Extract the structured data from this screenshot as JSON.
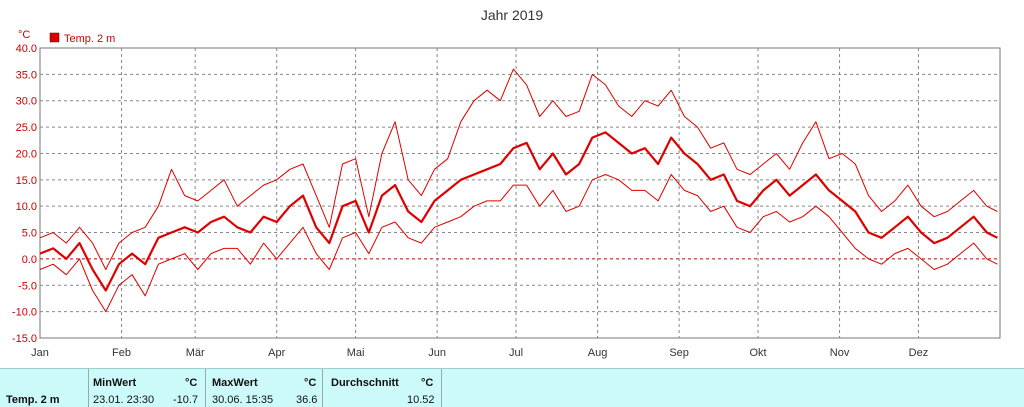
{
  "chart_data": {
    "type": "line",
    "title": "Jahr 2019",
    "ylabel": "°C",
    "ylim": [
      -15,
      40
    ],
    "yticks": [
      "40.0",
      "35.0",
      "30.0",
      "25.0",
      "20.0",
      "15.0",
      "10.0",
      "5.0",
      "0.0",
      "-5.0",
      "-10.0",
      "-15.0"
    ],
    "months": [
      "Jan",
      "Feb",
      "Mär",
      "Apr",
      "Mai",
      "Jun",
      "Jul",
      "Aug",
      "Sep",
      "Okt",
      "Nov",
      "Dez"
    ],
    "grid": true,
    "legend": "top-left",
    "series": [
      {
        "name": "Temp. 2 m",
        "role": "mean",
        "x_days": [
          0,
          5,
          10,
          15,
          20,
          25,
          30,
          35,
          40,
          45,
          50,
          55,
          60,
          65,
          70,
          75,
          80,
          85,
          90,
          95,
          100,
          105,
          110,
          115,
          120,
          125,
          130,
          135,
          140,
          145,
          150,
          155,
          160,
          165,
          170,
          175,
          180,
          185,
          190,
          195,
          200,
          205,
          210,
          215,
          220,
          225,
          230,
          235,
          240,
          245,
          250,
          255,
          260,
          265,
          270,
          275,
          280,
          285,
          290,
          295,
          300,
          305,
          310,
          315,
          320,
          325,
          330,
          335,
          340,
          345,
          350,
          355,
          360,
          364
        ],
        "values": [
          1,
          2,
          0,
          3,
          -2,
          -6,
          -1,
          1,
          -1,
          4,
          5,
          6,
          5,
          7,
          8,
          6,
          5,
          8,
          7,
          10,
          12,
          6,
          3,
          10,
          11,
          5,
          12,
          14,
          9,
          7,
          11,
          13,
          15,
          16,
          17,
          18,
          21,
          22,
          17,
          20,
          16,
          18,
          23,
          24,
          22,
          20,
          21,
          18,
          23,
          20,
          18,
          15,
          16,
          11,
          10,
          13,
          15,
          12,
          14,
          16,
          13,
          11,
          9,
          5,
          4,
          6,
          8,
          5,
          3,
          4,
          6,
          8,
          5,
          4
        ]
      },
      {
        "name": "Max",
        "role": "max",
        "x_days": [
          0,
          5,
          10,
          15,
          20,
          25,
          30,
          35,
          40,
          45,
          50,
          55,
          60,
          65,
          70,
          75,
          80,
          85,
          90,
          95,
          100,
          105,
          110,
          115,
          120,
          125,
          130,
          135,
          140,
          145,
          150,
          155,
          160,
          165,
          170,
          175,
          180,
          185,
          190,
          195,
          200,
          205,
          210,
          215,
          220,
          225,
          230,
          235,
          240,
          245,
          250,
          255,
          260,
          265,
          270,
          275,
          280,
          285,
          290,
          295,
          300,
          305,
          310,
          315,
          320,
          325,
          330,
          335,
          340,
          345,
          350,
          355,
          360,
          364
        ],
        "values": [
          4,
          5,
          3,
          6,
          3,
          -2,
          3,
          5,
          6,
          10,
          17,
          12,
          11,
          13,
          15,
          10,
          12,
          14,
          15,
          17,
          18,
          12,
          6,
          18,
          19,
          8,
          20,
          26,
          15,
          12,
          17,
          19,
          26,
          30,
          32,
          30,
          36,
          33,
          27,
          30,
          27,
          28,
          35,
          33,
          29,
          27,
          30,
          29,
          32,
          27,
          25,
          21,
          22,
          17,
          16,
          18,
          20,
          17,
          22,
          26,
          19,
          20,
          18,
          12,
          9,
          11,
          14,
          10,
          8,
          9,
          11,
          13,
          10,
          9
        ]
      },
      {
        "name": "Min",
        "role": "min",
        "x_days": [
          0,
          5,
          10,
          15,
          20,
          25,
          30,
          35,
          40,
          45,
          50,
          55,
          60,
          65,
          70,
          75,
          80,
          85,
          90,
          95,
          100,
          105,
          110,
          115,
          120,
          125,
          130,
          135,
          140,
          145,
          150,
          155,
          160,
          165,
          170,
          175,
          180,
          185,
          190,
          195,
          200,
          205,
          210,
          215,
          220,
          225,
          230,
          235,
          240,
          245,
          250,
          255,
          260,
          265,
          270,
          275,
          280,
          285,
          290,
          295,
          300,
          305,
          310,
          315,
          320,
          325,
          330,
          335,
          340,
          345,
          350,
          355,
          360,
          364
        ],
        "values": [
          -2,
          -1,
          -3,
          0,
          -6,
          -10,
          -5,
          -3,
          -7,
          -1,
          0,
          1,
          -2,
          1,
          2,
          2,
          -1,
          3,
          0,
          3,
          6,
          1,
          -2,
          4,
          5,
          1,
          6,
          7,
          4,
          3,
          6,
          7,
          8,
          10,
          11,
          11,
          14,
          14,
          10,
          13,
          9,
          10,
          15,
          16,
          15,
          13,
          13,
          11,
          16,
          13,
          12,
          9,
          10,
          6,
          5,
          8,
          9,
          7,
          8,
          10,
          8,
          5,
          2,
          0,
          -1,
          1,
          2,
          0,
          -2,
          -1,
          1,
          3,
          0,
          -1
        ]
      }
    ],
    "colors": {
      "series": "#dd0000",
      "grid": "#888888",
      "zero_line": "#cc0000"
    }
  },
  "stats": {
    "label": "Temp. 2 m",
    "min_head": "MinWert",
    "min_unit": "°C",
    "min_date": "23.01.  23:30",
    "min_val": "-10.7",
    "max_head": "MaxWert",
    "max_unit": "°C",
    "max_date": "30.06.  15:35",
    "max_val": "36.6",
    "avg_head": "Durchschnitt",
    "avg_unit": "°C",
    "avg_val": "10.52"
  }
}
